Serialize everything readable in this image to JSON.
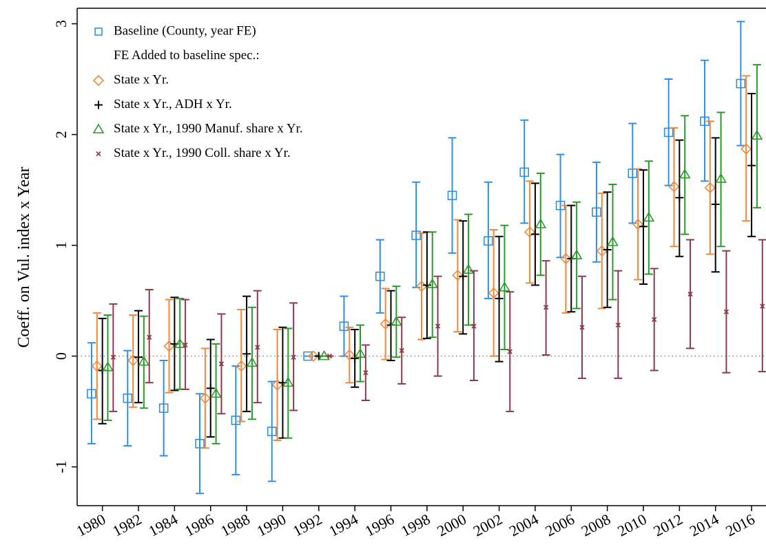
{
  "chart_data": {
    "type": "errorbar",
    "y_label": "Coeff. on Vul. index x Year",
    "legend_note": "FE Added to baseline spec.:",
    "x": [
      1980,
      1982,
      1984,
      1986,
      1988,
      1990,
      1992,
      1994,
      1996,
      1998,
      2000,
      2002,
      2004,
      2006,
      2008,
      2010,
      2012,
      2014,
      2016
    ],
    "xlim": [
      1978.6,
      2016.8
    ],
    "xticks": [
      1980,
      1982,
      1984,
      1986,
      1988,
      1990,
      1992,
      1994,
      1996,
      1998,
      2000,
      2002,
      2004,
      2006,
      2008,
      2010,
      2012,
      2014,
      2016
    ],
    "ylim": [
      -1.35,
      3.14
    ],
    "yticks": [
      -1,
      0,
      1,
      2,
      3
    ],
    "zero_line": true,
    "legend": "top-left",
    "series": [
      {
        "name": "Baseline (County, year FE)",
        "color": "#2e8fe6",
        "marker": "square",
        "values": [
          -0.34,
          -0.38,
          -0.47,
          -0.79,
          -0.58,
          -0.68,
          0,
          0.27,
          0.72,
          1.09,
          1.45,
          1.04,
          1.66,
          1.36,
          1.3,
          1.65,
          2.02,
          2.12,
          2.46
        ],
        "lower": [
          -0.79,
          -0.81,
          -0.9,
          -1.24,
          -1.07,
          -1.13,
          0,
          0,
          0.39,
          0.62,
          0.93,
          0.52,
          1.2,
          0.89,
          0.85,
          1.2,
          1.54,
          1.58,
          1.9
        ],
        "upper": [
          0.12,
          0.05,
          -0.04,
          -0.34,
          -0.09,
          -0.23,
          0,
          0.54,
          1.05,
          1.57,
          1.97,
          1.57,
          2.13,
          1.82,
          1.75,
          2.1,
          2.5,
          2.67,
          3.02
        ]
      },
      {
        "name": "State x Yr.",
        "color": "#f0883a",
        "marker": "diamond",
        "values": [
          -0.09,
          -0.04,
          0.09,
          -0.38,
          -0.09,
          -0.26,
          0,
          0.01,
          0.29,
          0.63,
          0.73,
          0.57,
          1.12,
          0.88,
          0.95,
          1.19,
          1.53,
          1.52,
          1.87
        ],
        "lower": [
          -0.57,
          -0.46,
          -0.33,
          -0.83,
          -0.59,
          -0.76,
          0,
          -0.24,
          -0.03,
          0.15,
          0.22,
          0,
          0.66,
          0.39,
          0.43,
          0.69,
          0.99,
          0.92,
          1.22
        ],
        "upper": [
          0.39,
          0.37,
          0.51,
          0.07,
          0.42,
          0.24,
          0,
          0.26,
          0.61,
          1.11,
          1.23,
          1.14,
          1.58,
          1.36,
          1.47,
          1.69,
          2.06,
          2.12,
          2.53
        ]
      },
      {
        "name": "State x Yr., ADH x Yr.",
        "color": "#000000",
        "marker": "plus",
        "values": [
          -0.13,
          -0.01,
          0.11,
          -0.29,
          0.02,
          -0.24,
          0,
          -0.02,
          0.28,
          0.64,
          0.72,
          0.52,
          1.1,
          0.88,
          0.96,
          1.17,
          1.43,
          1.37,
          1.72
        ],
        "lower": [
          -0.61,
          -0.42,
          -0.31,
          -0.73,
          -0.5,
          -0.74,
          0,
          -0.28,
          -0.04,
          0.16,
          0.2,
          -0.05,
          0.64,
          0.4,
          0.44,
          0.65,
          0.9,
          0.76,
          1.08
        ],
        "upper": [
          0.34,
          0.41,
          0.53,
          0.15,
          0.54,
          0.26,
          0,
          0.24,
          0.59,
          1.12,
          1.22,
          1.08,
          1.56,
          1.36,
          1.48,
          1.68,
          1.95,
          1.97,
          2.37
        ]
      },
      {
        "name": "State x Yr., 1990 Manuf. share x Yr.",
        "color": "#2a9a2a",
        "marker": "triangle",
        "values": [
          -0.1,
          -0.05,
          0.11,
          -0.34,
          -0.06,
          -0.24,
          0,
          0.02,
          0.31,
          0.65,
          0.78,
          0.62,
          1.19,
          0.91,
          1.03,
          1.25,
          1.64,
          1.6,
          1.99
        ],
        "lower": [
          -0.58,
          -0.47,
          -0.3,
          -0.79,
          -0.57,
          -0.74,
          0,
          -0.23,
          -0.01,
          0.17,
          0.28,
          0.06,
          0.73,
          0.43,
          0.51,
          0.74,
          1.1,
          0.99,
          1.34
        ],
        "upper": [
          0.37,
          0.36,
          0.52,
          0.11,
          0.44,
          0.25,
          0,
          0.28,
          0.63,
          1.12,
          1.28,
          1.18,
          1.65,
          1.39,
          1.55,
          1.76,
          2.17,
          2.2,
          2.63
        ]
      },
      {
        "name": "State x Yr., 1990 Coll. share x Yr.",
        "color": "#8b3a4c",
        "marker": "x",
        "values": [
          -0.01,
          0.17,
          0.1,
          -0.07,
          0.08,
          -0.01,
          0,
          -0.15,
          0.05,
          0.27,
          0.27,
          0.04,
          0.44,
          0.26,
          0.28,
          0.33,
          0.56,
          0.4,
          0.45
        ],
        "lower": [
          -0.5,
          -0.24,
          -0.3,
          -0.52,
          -0.42,
          -0.49,
          0,
          -0.4,
          -0.25,
          -0.18,
          -0.22,
          -0.5,
          0.01,
          -0.2,
          -0.2,
          -0.13,
          0.07,
          -0.15,
          -0.14
        ],
        "upper": [
          0.47,
          0.6,
          0.51,
          0.38,
          0.59,
          0.48,
          0,
          0.1,
          0.35,
          0.72,
          0.77,
          0.58,
          0.86,
          0.72,
          0.77,
          0.79,
          1.05,
          0.95,
          1.05
        ]
      }
    ]
  }
}
